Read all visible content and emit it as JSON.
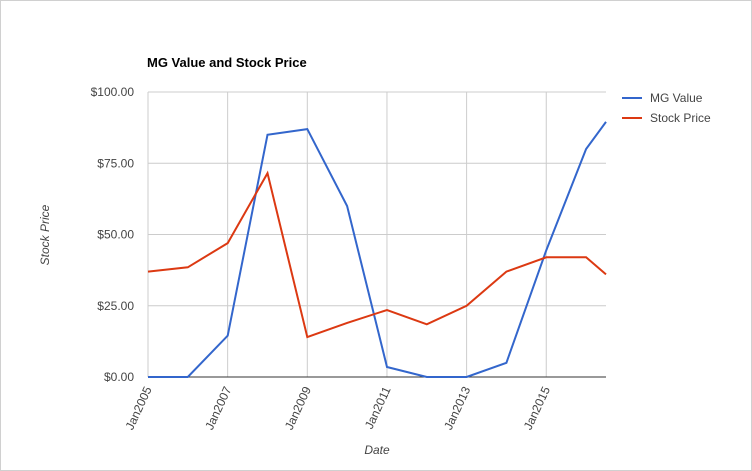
{
  "chart_data": {
    "type": "line",
    "title": "MG Value and Stock Price",
    "x_label": "Date",
    "y_label": "Stock Price",
    "x": [
      2005,
      2006,
      2007,
      2008,
      2009,
      2010,
      2011,
      2012,
      2013,
      2014,
      2015,
      2016,
      2016.5
    ],
    "series": [
      {
        "name": "MG Value",
        "color": "#3366cc",
        "values": [
          0,
          0,
          14.5,
          85,
          87,
          60,
          3.5,
          0,
          0,
          5,
          44.5,
          80,
          89.5
        ]
      },
      {
        "name": "Stock Price",
        "color": "#dc3912",
        "values": [
          37,
          38.5,
          47,
          71.5,
          14,
          19,
          23.5,
          18.5,
          25,
          37,
          42,
          42,
          36
        ]
      }
    ],
    "xlim": [
      2005,
      2016.5
    ],
    "xticks": [
      {
        "value": 2005,
        "label": "Jan2005"
      },
      {
        "value": 2007,
        "label": "Jan2007"
      },
      {
        "value": 2009,
        "label": "Jan2009"
      },
      {
        "value": 2011,
        "label": "Jan2011"
      },
      {
        "value": 2013,
        "label": "Jan2013"
      },
      {
        "value": 2015,
        "label": "Jan2015"
      }
    ],
    "ylim": [
      0,
      100
    ],
    "yticks": [
      {
        "value": 0,
        "label": "$0.00"
      },
      {
        "value": 25,
        "label": "$25.00"
      },
      {
        "value": 50,
        "label": "$50.00"
      },
      {
        "value": 75,
        "label": "$75.00"
      },
      {
        "value": 100,
        "label": "$100.00"
      }
    ],
    "grid": true,
    "legend": "right"
  }
}
